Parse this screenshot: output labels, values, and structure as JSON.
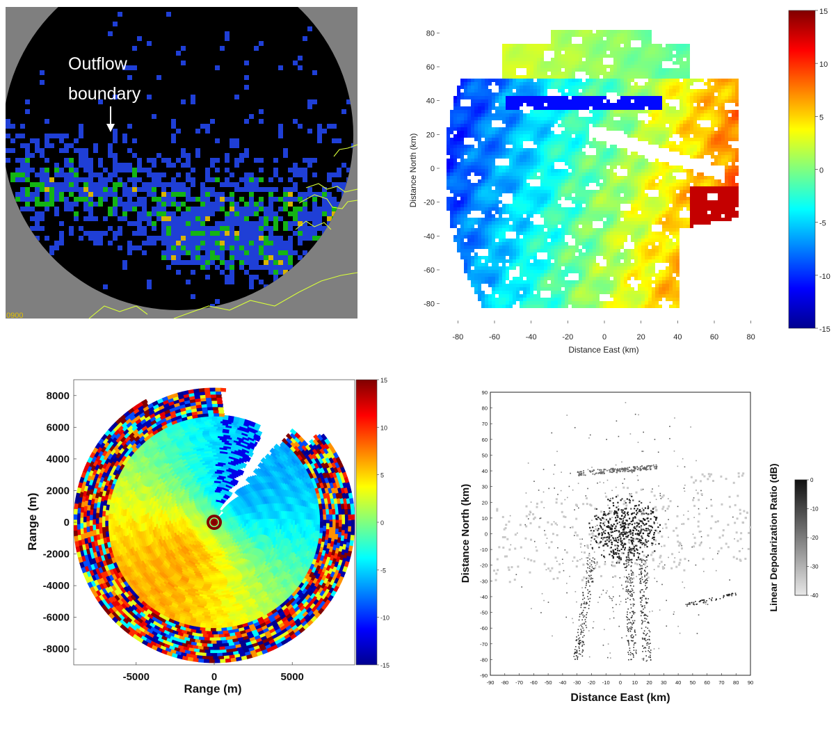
{
  "chart_data": [
    {
      "type": "heatmap",
      "panel": "radar-reflectivity-ppi",
      "annotation": [
        "Outflow",
        "boundary"
      ],
      "corner_label": "0900",
      "colors": {
        "background": "#000000",
        "outside": "#7f7f7f",
        "low": "#1f3fd6",
        "mid": "#14b414",
        "high": "#d8b400",
        "coast": "#d9ff3a"
      }
    },
    {
      "type": "heatmap",
      "panel": "radial-velocity-map",
      "xlabel": "Distance East (km)",
      "ylabel": "Distance North (km)",
      "xticks": [
        -80,
        -60,
        -40,
        -20,
        0,
        20,
        40,
        60,
        80
      ],
      "yticks": [
        -80,
        -60,
        -40,
        -20,
        0,
        20,
        40,
        60,
        80
      ],
      "xlim": [
        -90,
        90
      ],
      "ylim": [
        -90,
        90
      ],
      "colorbar_ticks": [
        15,
        10,
        5,
        0,
        -5,
        -10,
        -15
      ],
      "colorbar_range": [
        -15,
        15
      ],
      "colormap": "jet"
    },
    {
      "type": "heatmap",
      "panel": "range-range-velocity",
      "xlabel": "Range (m)",
      "ylabel": "Range  (m)",
      "xticks": [
        -5000,
        0,
        5000
      ],
      "yticks": [
        8000,
        6000,
        4000,
        2000,
        0,
        -2000,
        -4000,
        -6000,
        -8000
      ],
      "xlim": [
        -9000,
        9000
      ],
      "ylim": [
        -9000,
        9000
      ],
      "colorbar_ticks": [
        15,
        10,
        5,
        0,
        -5,
        -10,
        -15
      ],
      "colorbar_range": [
        -15,
        15
      ],
      "colormap": "jet"
    },
    {
      "type": "scatter",
      "panel": "linear-depolarization-ratio",
      "xlabel": "Distance East  (km)",
      "ylabel": "Distance North (km)",
      "xticks": [
        -90,
        -80,
        -70,
        -60,
        -50,
        -40,
        -30,
        -20,
        -10,
        0,
        10,
        20,
        30,
        40,
        50,
        60,
        70,
        80,
        90
      ],
      "yticks": [
        90,
        80,
        70,
        60,
        50,
        40,
        30,
        20,
        10,
        0,
        -10,
        -20,
        -30,
        -40,
        -50,
        -60,
        -70,
        -80,
        -90
      ],
      "xlim": [
        -90,
        90
      ],
      "ylim": [
        -90,
        90
      ],
      "colorbar_label": "Linear Depolarization Ratio (dB)",
      "colorbar_ticks": [
        0,
        -10,
        -20,
        -30,
        -40
      ],
      "colorbar_range": [
        -40,
        0
      ],
      "colormap": "gray"
    }
  ]
}
